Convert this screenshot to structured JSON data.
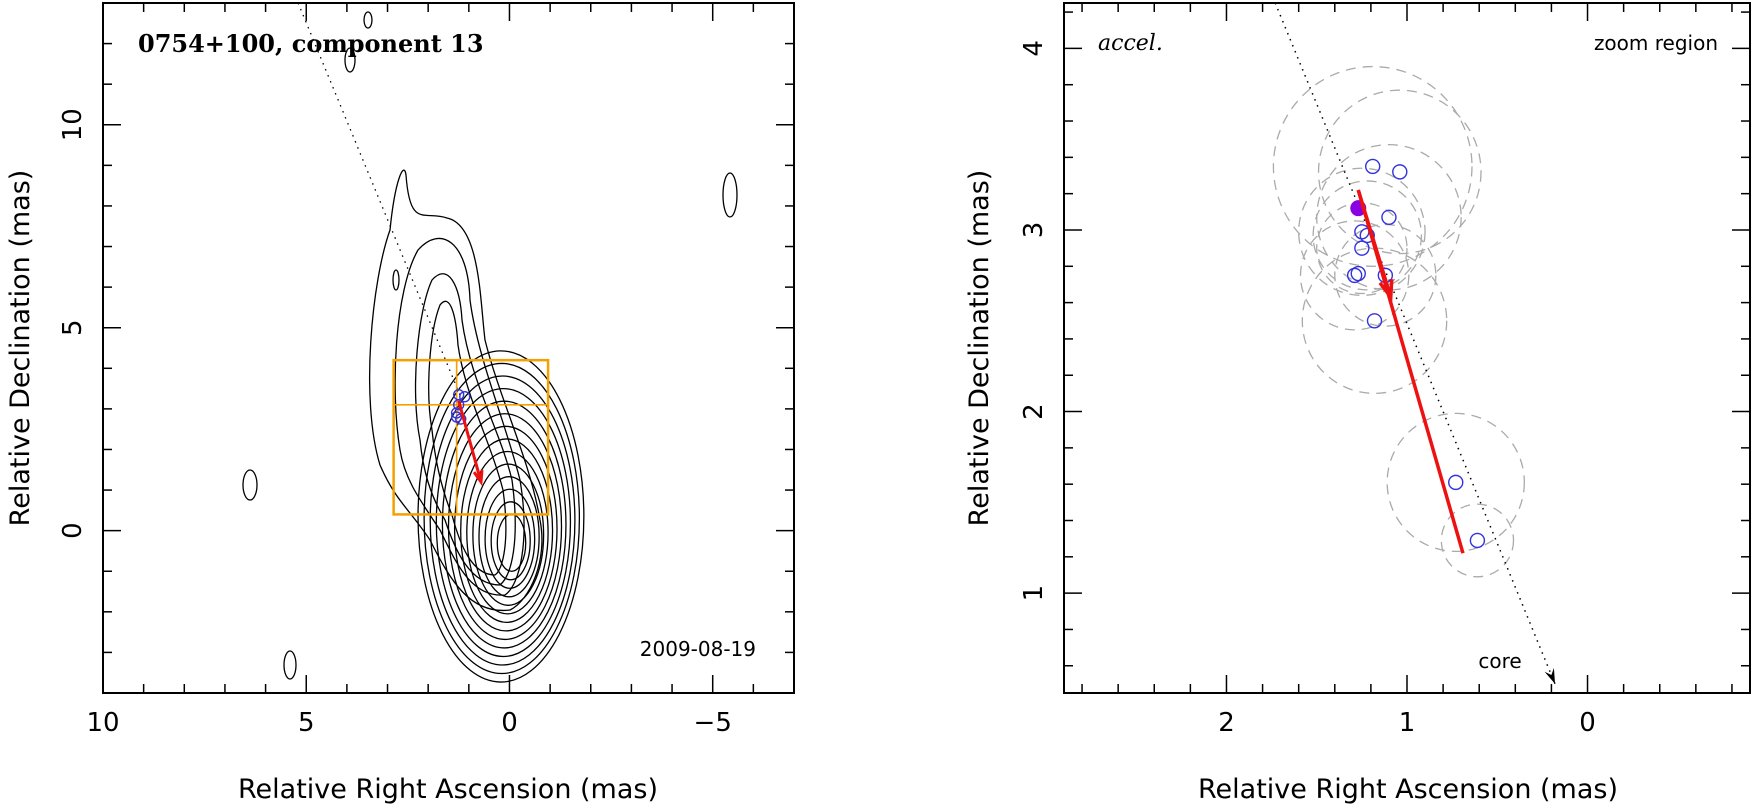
{
  "chart_data": [
    {
      "type": "scatter",
      "title": "0754+100, component 13",
      "epoch_label": "2009-08-19",
      "xlabel": "Relative Right Ascension (mas)",
      "ylabel": "Relative Declination (mas)",
      "xlim": [
        10,
        -7
      ],
      "ylim": [
        -4,
        13
      ],
      "x_ticks": [
        "10",
        "5",
        "0",
        "−5"
      ],
      "x_tick_values": [
        10,
        5,
        0,
        -5
      ],
      "y_ticks": [
        "0",
        "5",
        "10"
      ],
      "y_tick_values": [
        0,
        5,
        10
      ],
      "points": [
        {
          "x": 1.25,
          "y": 3.1
        },
        {
          "x": 1.3,
          "y": 2.9
        },
        {
          "x": 1.1,
          "y": 3.3
        },
        {
          "x": 1.25,
          "y": 3.35
        },
        {
          "x": 1.2,
          "y": 2.75
        },
        {
          "x": 1.3,
          "y": 2.8
        }
      ],
      "velocity_arrow": {
        "x0": 1.25,
        "y0": 3.2,
        "x1": 0.7,
        "y1": 1.2
      },
      "direction_line": {
        "x0": 5.2,
        "y0": 13.0,
        "x1": 1.2,
        "y1": 3.3
      },
      "zoom_box": {
        "x": [
          2.85,
          -0.95
        ],
        "y": [
          0.4,
          4.2
        ],
        "cross_x": 1.3,
        "cross_y": 3.1
      },
      "colors": {
        "points": "#3333dd",
        "arrow": "#ee1111",
        "box": "#f5a000",
        "contour": "#000000"
      }
    },
    {
      "type": "scatter",
      "title": "accel.",
      "subtitle": "zoom region",
      "xlabel": "Relative Right Ascension (mas)",
      "ylabel": "Relative Declination (mas)",
      "xlim": [
        2.9,
        -0.9
      ],
      "ylim": [
        0.45,
        4.25
      ],
      "x_ticks": [
        "2",
        "1",
        "0"
      ],
      "x_tick_values": [
        2,
        1,
        0
      ],
      "y_ticks": [
        "1",
        "2",
        "3",
        "4"
      ],
      "y_tick_values": [
        1,
        2,
        3,
        4
      ],
      "points": [
        {
          "x": 1.19,
          "y": 3.35
        },
        {
          "x": 1.04,
          "y": 3.32
        },
        {
          "x": 1.1,
          "y": 3.07
        },
        {
          "x": 1.25,
          "y": 2.99
        },
        {
          "x": 1.22,
          "y": 2.97
        },
        {
          "x": 1.25,
          "y": 2.9
        },
        {
          "x": 1.29,
          "y": 2.75
        },
        {
          "x": 1.27,
          "y": 2.76
        },
        {
          "x": 1.12,
          "y": 2.75
        },
        {
          "x": 1.18,
          "y": 2.5
        },
        {
          "x": 0.73,
          "y": 1.61
        },
        {
          "x": 0.61,
          "y": 1.29
        }
      ],
      "filled_point": {
        "x": 1.27,
        "y": 3.12
      },
      "uncertainty_circles": [
        {
          "x": 1.19,
          "y": 3.35,
          "r": 0.55
        },
        {
          "x": 1.04,
          "y": 3.32,
          "r": 0.45
        },
        {
          "x": 1.1,
          "y": 3.07,
          "r": 0.4
        },
        {
          "x": 1.25,
          "y": 2.99,
          "r": 0.35
        },
        {
          "x": 1.22,
          "y": 2.97,
          "r": 0.3
        },
        {
          "x": 1.25,
          "y": 2.9,
          "r": 0.25
        },
        {
          "x": 1.29,
          "y": 2.75,
          "r": 0.3
        },
        {
          "x": 1.12,
          "y": 2.75,
          "r": 0.28
        },
        {
          "x": 1.18,
          "y": 2.5,
          "r": 0.4
        },
        {
          "x": 0.73,
          "y": 1.61,
          "r": 0.38
        },
        {
          "x": 0.61,
          "y": 1.29,
          "r": 0.2
        }
      ],
      "velocity_arrow": {
        "x0": 1.27,
        "y0": 3.22,
        "x1": 0.69,
        "y1": 1.22
      },
      "acceleration_arrow": {
        "x0": 1.27,
        "y0": 3.22,
        "x1": 1.09,
        "y1": 2.63
      },
      "direction_line": {
        "x0": 1.73,
        "y0": 4.25,
        "x1": 0.18,
        "y1": 0.5
      },
      "core_label": "core",
      "colors": {
        "points": "#3333dd",
        "filled_point": "#8a00e0",
        "arrow": "#ee1111",
        "circles": "#aaaaaa"
      }
    }
  ]
}
